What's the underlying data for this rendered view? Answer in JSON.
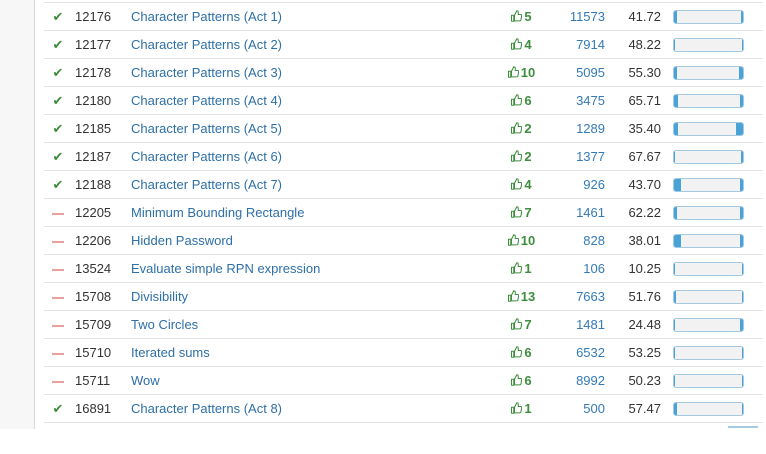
{
  "colors": {
    "solved_check": "#3c8d3c",
    "unsolved_dash": "#e9a0a0",
    "link": "#2e6fa7",
    "votes": "#3e8e3e",
    "bar_fill": "#4aa3d6",
    "bar_border": "#a6c9e2"
  },
  "icons": {
    "status_solved": "check-icon",
    "status_unsolved": "dash-icon",
    "votes": "thumbs-up-icon"
  },
  "rows": [
    {
      "status": "solved",
      "id": "12176",
      "name": "Character Patterns (Act 1)",
      "votes": "5",
      "solved_count": "11573",
      "percent": "41.72"
    },
    {
      "status": "solved",
      "id": "12177",
      "name": "Character Patterns (Act 2)",
      "votes": "4",
      "solved_count": "7914",
      "percent": "48.22"
    },
    {
      "status": "solved",
      "id": "12178",
      "name": "Character Patterns (Act 3)",
      "votes": "10",
      "solved_count": "5095",
      "percent": "55.30"
    },
    {
      "status": "solved",
      "id": "12180",
      "name": "Character Patterns (Act 4)",
      "votes": "6",
      "solved_count": "3475",
      "percent": "65.71"
    },
    {
      "status": "solved",
      "id": "12185",
      "name": "Character Patterns (Act 5)",
      "votes": "2",
      "solved_count": "1289",
      "percent": "35.40"
    },
    {
      "status": "solved",
      "id": "12187",
      "name": "Character Patterns (Act 6)",
      "votes": "2",
      "solved_count": "1377",
      "percent": "67.67"
    },
    {
      "status": "solved",
      "id": "12188",
      "name": "Character Patterns (Act 7)",
      "votes": "4",
      "solved_count": "926",
      "percent": "43.70"
    },
    {
      "status": "unsolved",
      "id": "12205",
      "name": "Minimum Bounding Rectangle",
      "votes": "7",
      "solved_count": "1461",
      "percent": "62.22"
    },
    {
      "status": "unsolved",
      "id": "12206",
      "name": "Hidden Password",
      "votes": "10",
      "solved_count": "828",
      "percent": "38.01"
    },
    {
      "status": "unsolved",
      "id": "13524",
      "name": "Evaluate simple RPN expression",
      "votes": "1",
      "solved_count": "106",
      "percent": "10.25"
    },
    {
      "status": "unsolved",
      "id": "15708",
      "name": "Divisibility",
      "votes": "13",
      "solved_count": "7663",
      "percent": "51.76"
    },
    {
      "status": "unsolved",
      "id": "15709",
      "name": "Two Circles",
      "votes": "7",
      "solved_count": "1481",
      "percent": "24.48"
    },
    {
      "status": "unsolved",
      "id": "15710",
      "name": "Iterated sums",
      "votes": "6",
      "solved_count": "6532",
      "percent": "53.25"
    },
    {
      "status": "unsolved",
      "id": "15711",
      "name": "Wow",
      "votes": "6",
      "solved_count": "8992",
      "percent": "50.23"
    },
    {
      "status": "solved",
      "id": "16891",
      "name": "Character Patterns (Act 8)",
      "votes": "1",
      "solved_count": "500",
      "percent": "57.47"
    }
  ]
}
